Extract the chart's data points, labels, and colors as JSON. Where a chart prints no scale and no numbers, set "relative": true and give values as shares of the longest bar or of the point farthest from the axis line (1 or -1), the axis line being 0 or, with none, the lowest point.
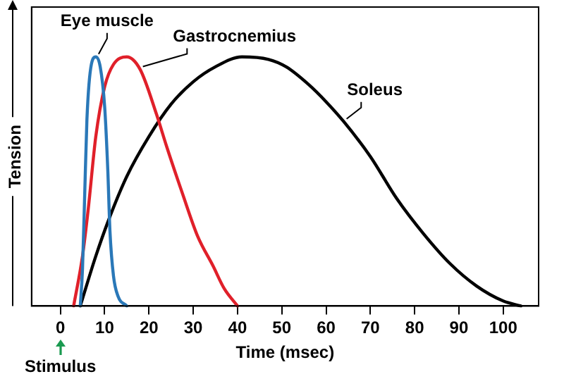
{
  "chart_data": {
    "type": "line",
    "xlabel": "Time (msec)",
    "ylabel": "Tension",
    "relative": true,
    "xlim": [
      -6.5,
      108
    ],
    "xticks": [
      0,
      10,
      20,
      30,
      40,
      50,
      60,
      70,
      80,
      90,
      100
    ],
    "grid": false,
    "legend": false,
    "marker": "none",
    "line_style": "solid",
    "tick_labels": "x",
    "annotations": [
      "Stimulus"
    ],
    "series": [
      {
        "name": "Eye muscle",
        "color": "#2a78b8",
        "x": [
          4.5,
          5,
          5.5,
          6,
          7,
          8,
          9,
          10,
          10.7,
          11.2,
          12,
          13,
          15
        ],
        "values": [
          0,
          0.15,
          0.45,
          0.75,
          0.97,
          1,
          0.96,
          0.8,
          0.55,
          0.3,
          0.12,
          0.04,
          0
        ]
      },
      {
        "name": "Gastrocnemius",
        "color": "#e0202a",
        "x": [
          3,
          5,
          6.3,
          8,
          10,
          12,
          15,
          18,
          21.7,
          24,
          27.6,
          31,
          34.5,
          37,
          40
        ],
        "values": [
          0,
          0.2,
          0.39,
          0.68,
          0.88,
          0.97,
          1,
          0.95,
          0.77,
          0.64,
          0.45,
          0.28,
          0.16,
          0.07,
          0
        ]
      },
      {
        "name": "Soleus",
        "color": "#000000",
        "x": [
          4.5,
          8,
          11,
          15,
          20,
          25,
          30,
          35,
          41,
          47,
          51,
          56,
          60,
          64,
          70,
          76,
          82,
          88,
          94,
          100,
          104
        ],
        "values": [
          0,
          0.2,
          0.35,
          0.52,
          0.68,
          0.81,
          0.9,
          0.96,
          1,
          0.99,
          0.96,
          0.89,
          0.82,
          0.74,
          0.6,
          0.43,
          0.29,
          0.17,
          0.08,
          0.02,
          0
        ]
      }
    ]
  }
}
